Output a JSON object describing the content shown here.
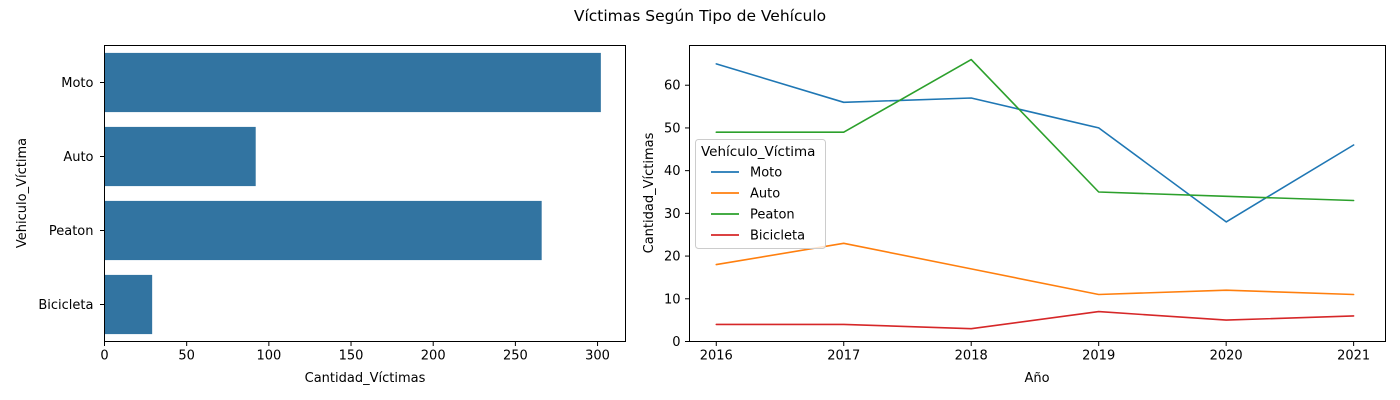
{
  "figure": {
    "title": "Víctimas Según Tipo de Vehículo"
  },
  "chart_data": [
    {
      "type": "bar",
      "orientation": "horizontal",
      "categories": [
        "Moto",
        "Auto",
        "Peaton",
        "Bicicleta"
      ],
      "values": [
        302,
        92,
        266,
        29
      ],
      "xlabel": "Cantidad_Víctimas",
      "ylabel": "Vehiculo_Víctima",
      "xlim": [
        0,
        317
      ],
      "xticks": [
        0,
        50,
        100,
        150,
        200,
        250,
        300
      ],
      "color": "#3274a1",
      "grid": false
    },
    {
      "type": "line",
      "x": [
        2016,
        2017,
        2018,
        2019,
        2020,
        2021
      ],
      "xlabel": "Año",
      "ylabel": "Cantidad_Víctimas",
      "xlim": [
        2015.79,
        2021.25
      ],
      "ylim": [
        0,
        69.3
      ],
      "yticks": [
        0,
        10,
        20,
        30,
        40,
        50,
        60
      ],
      "grid": false,
      "legend": {
        "title": "Vehículo_Víctima",
        "position": "center-left"
      },
      "series": [
        {
          "name": "Moto",
          "values": [
            65,
            56,
            57,
            50,
            28,
            46
          ],
          "color": "#1f77b4"
        },
        {
          "name": "Auto",
          "values": [
            18,
            23,
            17,
            11,
            12,
            11
          ],
          "color": "#ff7f0e"
        },
        {
          "name": "Peaton",
          "values": [
            49,
            49,
            66,
            35,
            34,
            33
          ],
          "color": "#2ca02c"
        },
        {
          "name": "Bicicleta",
          "values": [
            4,
            4,
            3,
            7,
            5,
            6
          ],
          "color": "#d62728"
        }
      ]
    }
  ]
}
